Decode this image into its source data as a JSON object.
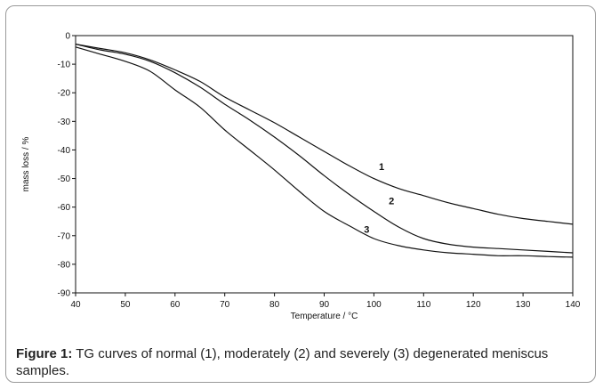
{
  "caption": {
    "label": "Figure 1:",
    "text": " TG curves of normal (1), moderately (2) and severely (3) degenerated meniscus samples."
  },
  "chart_data": {
    "type": "line",
    "xlabel": "Temperature / °C",
    "ylabel": "mass loss / %",
    "xlim": [
      40,
      140
    ],
    "ylim": [
      -90,
      0
    ],
    "xticks": [
      40,
      50,
      60,
      70,
      80,
      90,
      100,
      110,
      120,
      130,
      140
    ],
    "yticks": [
      0,
      -10,
      -20,
      -30,
      -40,
      -50,
      -60,
      -70,
      -80,
      -90
    ],
    "grid": false,
    "legend": "none",
    "line_color": "#111111",
    "series": [
      {
        "name": "1",
        "x": [
          40,
          45,
          50,
          55,
          60,
          65,
          70,
          75,
          80,
          85,
          90,
          95,
          100,
          105,
          110,
          115,
          120,
          125,
          130,
          135,
          140
        ],
        "y": [
          -3,
          -4.5,
          -6,
          -8.5,
          -12,
          -16,
          -21.5,
          -26,
          -30.5,
          -35.5,
          -40.5,
          -45.5,
          -50,
          -53.5,
          -56,
          -58.5,
          -60.5,
          -62.5,
          -64,
          -65,
          -66
        ]
      },
      {
        "name": "2",
        "x": [
          40,
          45,
          50,
          55,
          60,
          65,
          70,
          75,
          80,
          85,
          90,
          95,
          100,
          105,
          110,
          115,
          120,
          125,
          130,
          135,
          140
        ],
        "y": [
          -3,
          -5,
          -6.5,
          -9,
          -13,
          -18,
          -24,
          -29.5,
          -35.5,
          -42,
          -49,
          -55.5,
          -61.5,
          -67,
          -71,
          -73,
          -74,
          -74.5,
          -75,
          -75.5,
          -76
        ]
      },
      {
        "name": "3",
        "x": [
          40,
          45,
          50,
          55,
          60,
          65,
          70,
          75,
          80,
          85,
          90,
          95,
          100,
          105,
          110,
          115,
          120,
          125,
          130,
          135,
          140
        ],
        "y": [
          -4,
          -6.5,
          -9,
          -12.5,
          -19,
          -25,
          -33,
          -40,
          -47,
          -54.5,
          -61.5,
          -66.5,
          -71,
          -73.5,
          -75,
          -76,
          -76.5,
          -77,
          -77,
          -77.3,
          -77.5
        ]
      }
    ],
    "curve_labels": [
      {
        "text": "1",
        "x": 101,
        "y": -47
      },
      {
        "text": "2",
        "x": 103,
        "y": -59
      },
      {
        "text": "3",
        "x": 98,
        "y": -69
      }
    ]
  }
}
